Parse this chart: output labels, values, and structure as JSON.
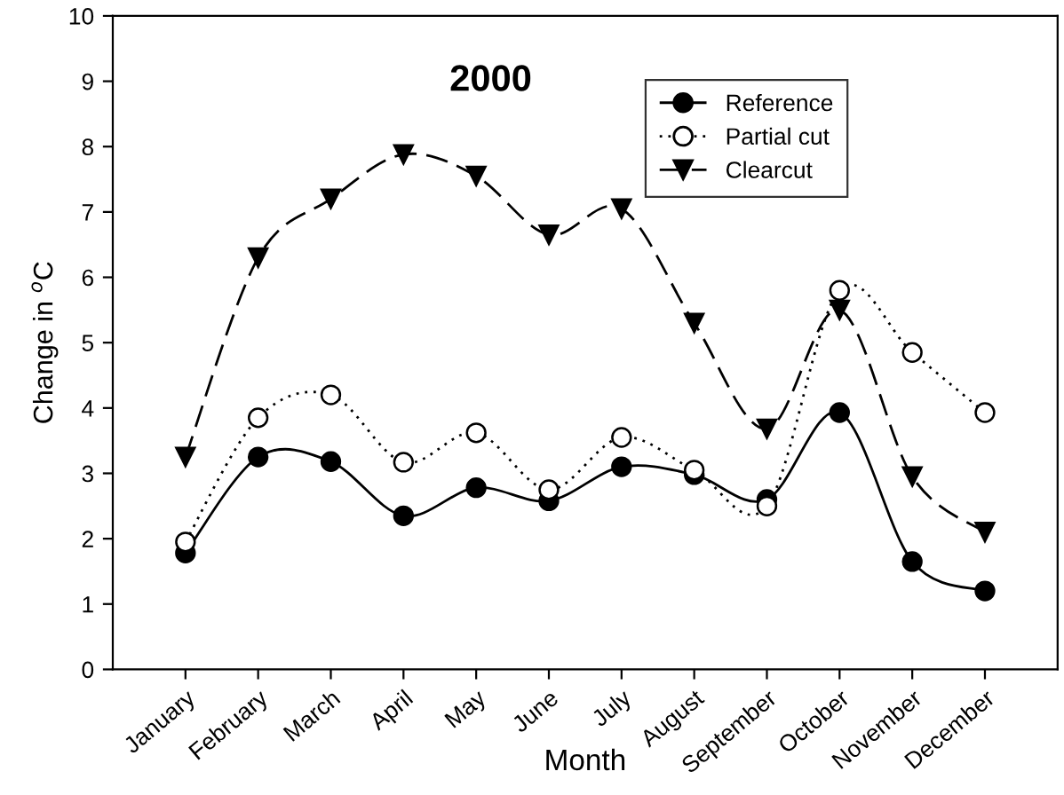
{
  "chart_data": {
    "type": "line",
    "title": "2000",
    "xlabel": "Month",
    "ylabel": "Change in $^{o}$C",
    "categories": [
      "January",
      "February",
      "March",
      "April",
      "May",
      "June",
      "July",
      "August",
      "September",
      "October",
      "November",
      "December"
    ],
    "series": [
      {
        "name": "Reference",
        "color": "#000000",
        "marker": "circle",
        "line_style": "solid",
        "values": [
          1.78,
          3.25,
          3.18,
          2.35,
          2.78,
          2.58,
          3.1,
          2.98,
          2.6,
          3.93,
          1.65,
          1.2
        ]
      },
      {
        "name": "Partial cut",
        "color": "#000000",
        "marker": "circle-open",
        "line_style": "dotted",
        "values": [
          1.95,
          3.85,
          4.2,
          3.17,
          3.62,
          2.75,
          3.55,
          3.05,
          2.5,
          5.8,
          4.85,
          3.93
        ]
      },
      {
        "name": "Clearcut",
        "color": "#000000",
        "marker": "triangle_down",
        "line_style": "dashed",
        "values": [
          3.25,
          6.3,
          7.2,
          7.88,
          7.55,
          6.65,
          7.05,
          5.3,
          3.68,
          5.5,
          2.95,
          2.1
        ]
      }
    ],
    "ylim": [
      0,
      10
    ],
    "yticks": [
      0,
      1,
      2,
      3,
      4,
      5,
      6,
      7,
      8,
      9,
      10
    ],
    "grid": false,
    "legend": "top right"
  }
}
